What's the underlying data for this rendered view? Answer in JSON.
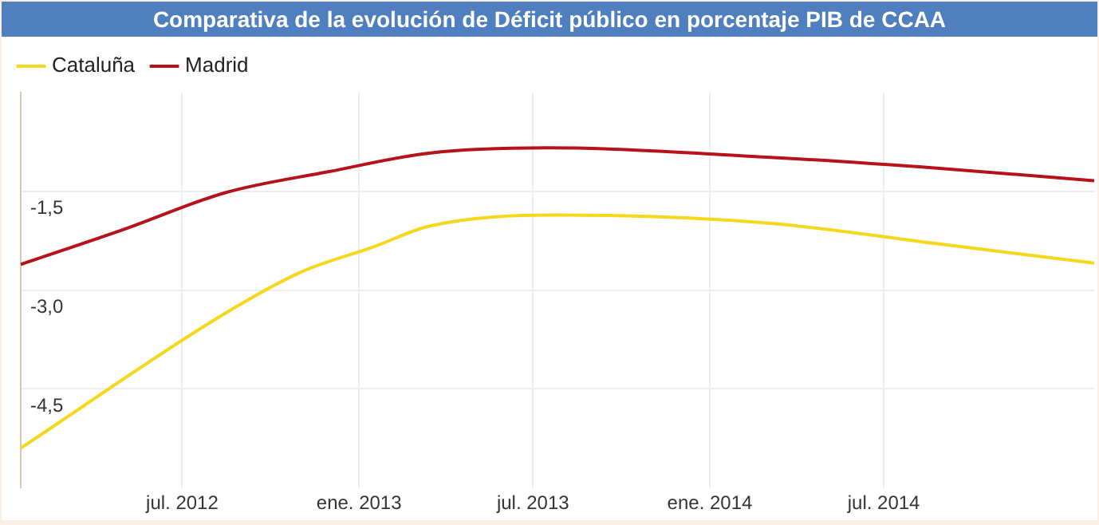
{
  "chart_data": {
    "type": "line",
    "title": "Comparativa de la evolución de Déficit público en porcentaje PIB de CCAA",
    "series": [
      {
        "name": "Cataluña",
        "color": "#f5d81c",
        "x": [
          "2012-01-15",
          "2012-08-15",
          "2012-11-01",
          "2013-01-15",
          "2013-03-15",
          "2013-07-25",
          "2014-03-01",
          "2014-08-28",
          "2015-02-05"
        ],
        "values": [
          -5.4,
          -3.35,
          -2.73,
          -2.35,
          -2.03,
          -1.86,
          -1.98,
          -2.3,
          -2.59
        ]
      },
      {
        "name": "Madrid",
        "color": "#b5121b",
        "x": [
          "2012-01-15",
          "2012-05-01",
          "2012-08-15",
          "2012-12-01",
          "2013-03-15",
          "2013-07-15",
          "2014-03-01",
          "2014-08-28",
          "2015-02-05"
        ],
        "values": [
          -2.61,
          -2.08,
          -1.52,
          -1.2,
          -0.92,
          -0.84,
          -0.98,
          -1.15,
          -1.34
        ]
      }
    ],
    "xlim": [
      "2012-01-15",
      "2015-02-05"
    ],
    "xticks": [
      {
        "value": "2012-07",
        "label": "jul. 2012"
      },
      {
        "value": "2013-01",
        "label": "ene. 2013"
      },
      {
        "value": "2013-07",
        "label": "jul. 2013"
      },
      {
        "value": "2014-01",
        "label": "ene. 2014"
      },
      {
        "value": "2014-07",
        "label": "jul. 2014"
      }
    ],
    "ylim": [
      -6,
      0
    ],
    "yticks": [
      {
        "value": -1.5,
        "label": "-1,5"
      },
      {
        "value": -3,
        "label": "-3,0"
      },
      {
        "value": -4.5,
        "label": "-4,5"
      }
    ],
    "grid": true,
    "legend": "top left",
    "marker": "none",
    "line_style": "solid"
  }
}
